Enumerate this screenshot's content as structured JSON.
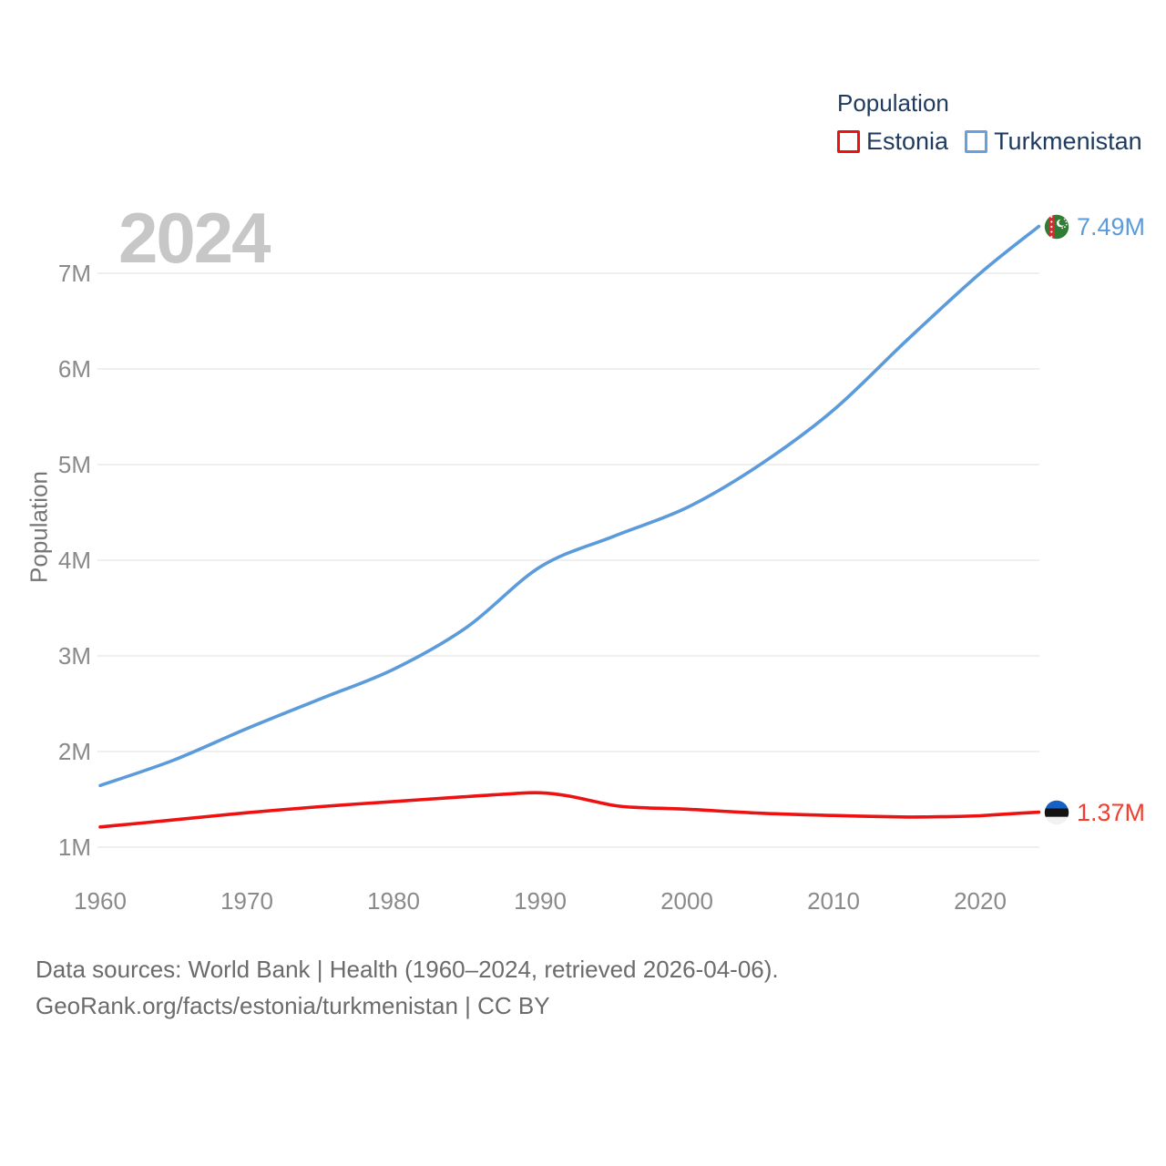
{
  "watermark": "2024",
  "legend": {
    "title": "Population",
    "items": [
      {
        "label": "Estonia",
        "color": "#ee1111"
      },
      {
        "label": "Turkmenistan",
        "color": "#5b9bdb"
      }
    ]
  },
  "end_labels": {
    "turkmenistan": "7.49M",
    "estonia": "1.37M"
  },
  "footer": {
    "line1": "Data sources: World Bank | Health (1960–2024, retrieved 2026-04-06).",
    "line2": "GeoRank.org/facts/estonia/turkmenistan | CC BY"
  },
  "colors": {
    "estonia_line": "#ee1111",
    "turkmenistan_line": "#5b9bdb",
    "legend_text": "#1e3a5f",
    "axis_text": "#8a8a8a",
    "watermark": "#c7c7c7",
    "gridline": "#eaeaea",
    "footer_text": "#6b6b6b"
  },
  "chart_data": {
    "type": "line",
    "title": "Population",
    "xlabel": "",
    "ylabel": "Population",
    "xlim": [
      1960,
      2024
    ],
    "ylim": [
      1000000,
      7500000
    ],
    "grid": "horizontal",
    "legend_position": "top-right",
    "x_ticks": [
      1960,
      1970,
      1980,
      1990,
      2000,
      2010,
      2020
    ],
    "y_ticks": [
      {
        "value": 1000000,
        "label": "1M"
      },
      {
        "value": 2000000,
        "label": "2M"
      },
      {
        "value": 3000000,
        "label": "3M"
      },
      {
        "value": 4000000,
        "label": "4M"
      },
      {
        "value": 5000000,
        "label": "5M"
      },
      {
        "value": 6000000,
        "label": "6M"
      },
      {
        "value": 7000000,
        "label": "7M"
      }
    ],
    "series": [
      {
        "name": "Turkmenistan",
        "color": "#5b9bdb",
        "end_label": "7.49M",
        "x": [
          1960,
          1965,
          1970,
          1975,
          1980,
          1985,
          1990,
          1995,
          2000,
          2005,
          2010,
          2015,
          2020,
          2024
        ],
        "y": [
          1645000,
          1910000,
          2240000,
          2550000,
          2860000,
          3300000,
          3930000,
          4250000,
          4550000,
          5000000,
          5570000,
          6300000,
          7000000,
          7490000
        ]
      },
      {
        "name": "Estonia",
        "color": "#ee1111",
        "end_label": "1.37M",
        "x": [
          1960,
          1965,
          1970,
          1975,
          1980,
          1985,
          1988,
          1990,
          1992,
          1995,
          1997,
          2000,
          2005,
          2010,
          2015,
          2018,
          2020,
          2022,
          2024
        ],
        "y": [
          1211000,
          1285000,
          1360000,
          1424000,
          1477000,
          1529000,
          1558000,
          1569000,
          1533000,
          1437000,
          1412000,
          1397000,
          1355000,
          1331000,
          1315000,
          1320000,
          1329000,
          1349000,
          1366000
        ]
      }
    ]
  }
}
